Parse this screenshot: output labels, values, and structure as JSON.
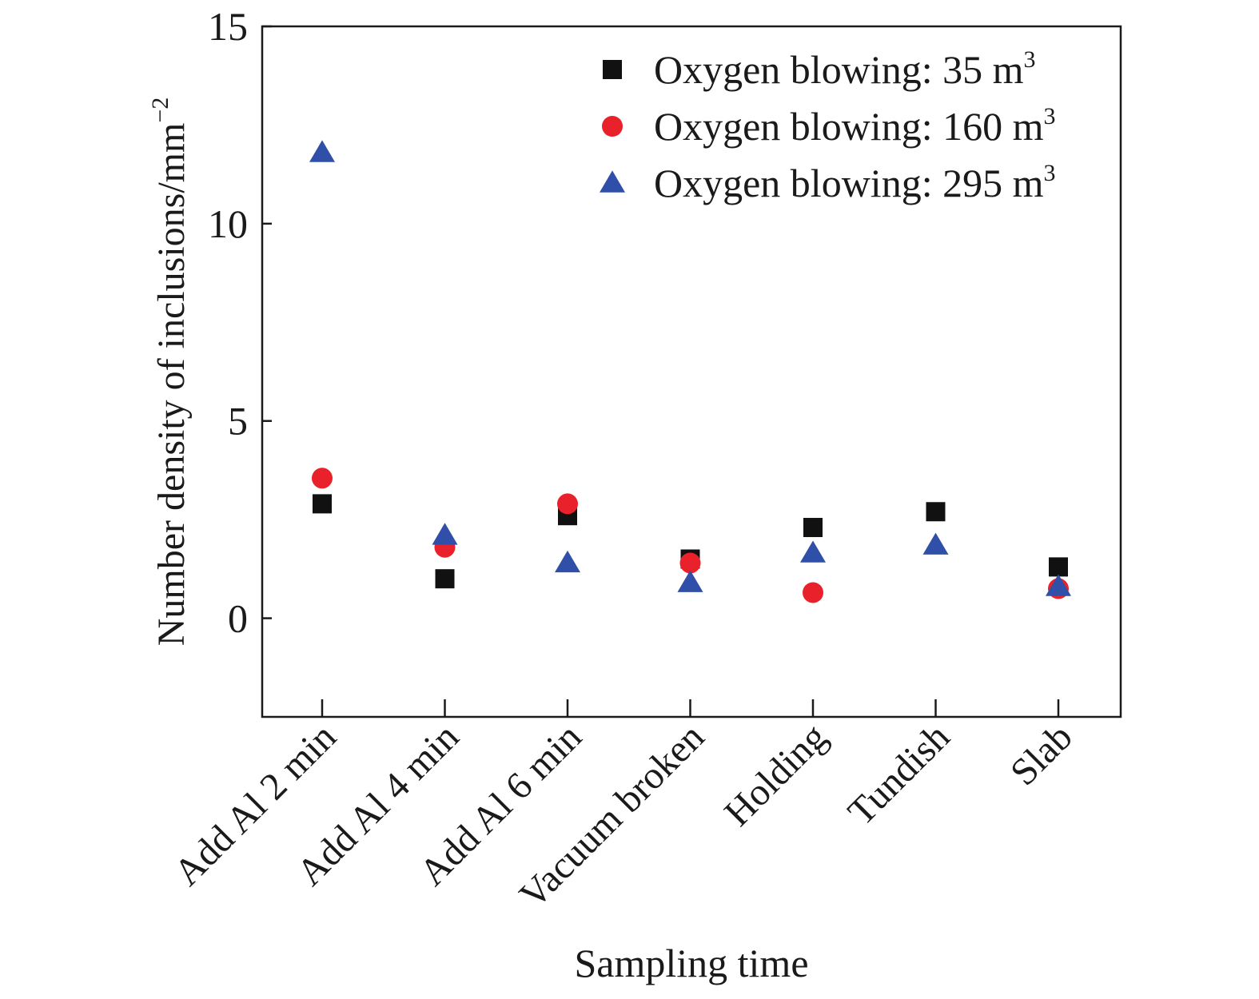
{
  "chart_data": {
    "type": "scatter",
    "title": "",
    "xlabel": "Sampling time",
    "ylabel_main": "Number density of inclusions/mm",
    "ylabel_sup": "−2",
    "categories": [
      "Add Al 2 min",
      "Add Al 4 min",
      "Add Al 6 min",
      "Vacuum broken",
      "Holding",
      "Tundish",
      "Slab"
    ],
    "ylim": [
      -2.5,
      15
    ],
    "yticks": [
      0,
      5,
      10,
      15
    ],
    "grid": false,
    "legend_position": "top-right",
    "series": [
      {
        "name_main": "Oxygen blowing: 35 m",
        "name_sup": "3",
        "marker": "square",
        "color": "#111111",
        "values": [
          2.9,
          1.0,
          2.6,
          1.5,
          2.3,
          2.7,
          1.3
        ]
      },
      {
        "name_main": "Oxygen blowing: 160 m",
        "name_sup": "3",
        "marker": "circle",
        "color": "#e8212a",
        "values": [
          3.55,
          1.8,
          2.9,
          1.4,
          0.65,
          null,
          0.75
        ]
      },
      {
        "name_main": "Oxygen blowing: 295 m",
        "name_sup": "3",
        "marker": "triangle",
        "color": "#2f4fa8",
        "values": [
          11.8,
          2.1,
          1.4,
          0.9,
          1.65,
          1.85,
          0.8
        ]
      }
    ]
  }
}
